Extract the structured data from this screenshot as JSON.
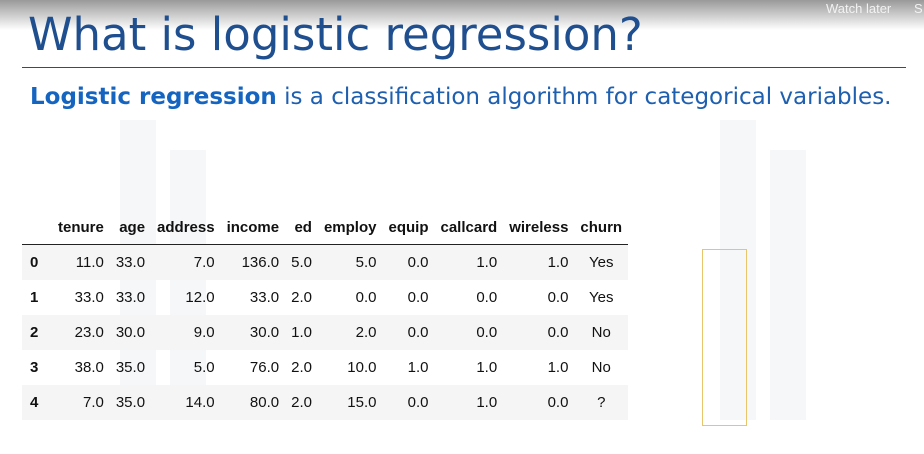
{
  "player": {
    "watch_later": "Watch later",
    "share_partial": "S"
  },
  "slide": {
    "title": "What is logistic regression?",
    "subtitle_bold": "Logistic regression",
    "subtitle_rest": " is a classification algorithm for categorical variables."
  },
  "table": {
    "columns": [
      "tenure",
      "age",
      "address",
      "income",
      "ed",
      "employ",
      "equip",
      "callcard",
      "wireless",
      "churn"
    ],
    "rows": [
      {
        "index": "0",
        "cells": [
          "11.0",
          "33.0",
          "7.0",
          "136.0",
          "5.0",
          "5.0",
          "0.0",
          "1.0",
          "1.0",
          "Yes"
        ]
      },
      {
        "index": "1",
        "cells": [
          "33.0",
          "33.0",
          "12.0",
          "33.0",
          "2.0",
          "0.0",
          "0.0",
          "0.0",
          "0.0",
          "Yes"
        ]
      },
      {
        "index": "2",
        "cells": [
          "23.0",
          "30.0",
          "9.0",
          "30.0",
          "1.0",
          "2.0",
          "0.0",
          "0.0",
          "0.0",
          "No"
        ]
      },
      {
        "index": "3",
        "cells": [
          "38.0",
          "35.0",
          "5.0",
          "76.0",
          "2.0",
          "10.0",
          "1.0",
          "1.0",
          "1.0",
          "No"
        ]
      },
      {
        "index": "4",
        "cells": [
          "7.0",
          "35.0",
          "14.0",
          "80.0",
          "2.0",
          "15.0",
          "0.0",
          "1.0",
          "0.0",
          "?"
        ]
      }
    ]
  },
  "colors": {
    "title": "#1f4f8f",
    "subtitle": "#1e5fb0",
    "churn_highlight_border": "#e8c46a"
  }
}
